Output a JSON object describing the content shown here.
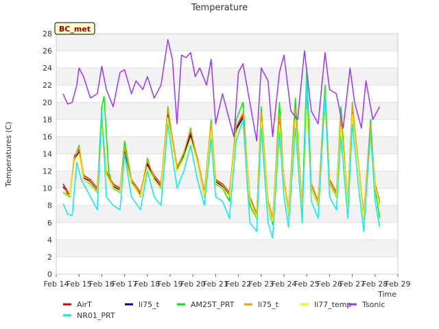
{
  "chart_data": {
    "type": "line",
    "title": "Temperature",
    "xlabel": "Time",
    "ylabel": "Temperatures (C)",
    "station_badge": "BC_met",
    "ylim": [
      0,
      28
    ],
    "xlim": [
      14,
      29
    ],
    "yticks": [
      "0",
      "2",
      "4",
      "6",
      "8",
      "10",
      "12",
      "14",
      "16",
      "18",
      "20",
      "22",
      "24",
      "26",
      "28"
    ],
    "xticks": [
      "Feb 14",
      "Feb 15",
      "Feb 16",
      "Feb 17",
      "Feb 18",
      "Feb 19",
      "Feb 20",
      "Feb 21",
      "Feb 22",
      "Feb 23",
      "Feb 24",
      "Feb 25",
      "Feb 26",
      "Feb 27",
      "Feb 28",
      "Feb 29"
    ],
    "grid": true,
    "legend_position": "bottom",
    "series": [
      {
        "name": "AirT",
        "color": "#dd0000",
        "x": [
          14.3,
          14.6,
          14.8,
          15.0,
          15.2,
          15.5,
          15.8,
          16.0,
          16.2,
          16.5,
          16.8,
          17.0,
          17.3,
          17.7,
          18.0,
          18.3,
          18.6,
          18.9,
          19.3,
          19.6,
          19.9,
          20.2,
          20.5,
          20.8,
          21.0,
          21.3,
          21.6,
          21.9,
          22.2,
          22.5,
          22.8,
          23.0,
          23.3,
          23.5,
          23.8,
          24.0,
          24.2,
          24.5,
          24.8,
          25.0,
          25.2,
          25.5,
          25.8,
          26.0,
          26.3,
          26.5,
          26.8,
          27.0,
          27.3,
          27.5,
          27.8,
          28.0,
          28.2
        ],
        "y": [
          10.5,
          9.2,
          13.8,
          14.5,
          11.5,
          11.0,
          10.0,
          17.8,
          12.0,
          10.5,
          10.0,
          14.5,
          11.0,
          9.5,
          13.0,
          11.5,
          10.5,
          19.0,
          12.5,
          14.0,
          16.5,
          13.5,
          9.5,
          17.5,
          11.0,
          10.5,
          9.5,
          17.0,
          18.5,
          9.0,
          7.0,
          18.5,
          8.5,
          6.5,
          18.0,
          11.0,
          7.5,
          19.0,
          8.0,
          20.0,
          10.5,
          8.5,
          21.0,
          11.0,
          9.5,
          18.0,
          8.5,
          19.5,
          12.0,
          7.0,
          17.0,
          10.5,
          8.5
        ]
      },
      {
        "name": "li75_t",
        "color": "#0000aa",
        "x": [
          14.3,
          14.6,
          14.8,
          15.0,
          15.2,
          15.5,
          15.8,
          16.0,
          16.2,
          16.5,
          16.8,
          17.0,
          17.3,
          17.7,
          18.0,
          18.3,
          18.6,
          18.9,
          19.3,
          19.6,
          19.9,
          20.2,
          20.5,
          20.8,
          21.0,
          21.3,
          21.6,
          21.9,
          22.2,
          22.5,
          22.8,
          23.0,
          23.3,
          23.5,
          23.8,
          24.0,
          24.2,
          24.5,
          24.8,
          25.0,
          25.2,
          25.5,
          25.8,
          26.0,
          26.3,
          26.5,
          26.8,
          27.0,
          27.3,
          27.5,
          27.8,
          28.0,
          28.2
        ],
        "y": [
          10.2,
          9.0,
          13.5,
          14.2,
          11.2,
          10.8,
          9.8,
          17.5,
          11.8,
          10.2,
          9.8,
          14.2,
          10.8,
          9.3,
          12.8,
          11.2,
          10.2,
          18.8,
          12.2,
          13.8,
          16.2,
          13.2,
          9.3,
          17.2,
          10.8,
          10.2,
          9.2,
          16.8,
          18.2,
          8.8,
          6.8,
          18.2,
          8.2,
          6.2,
          17.8,
          10.8,
          7.2,
          18.8,
          7.8,
          19.8,
          10.2,
          8.2,
          20.8,
          10.8,
          9.2,
          17.8,
          8.2,
          19.2,
          11.8,
          6.8,
          16.8,
          10.2,
          8.2
        ]
      },
      {
        "name": "AM25T_PRT",
        "color": "#00ee00",
        "x": [
          14.3,
          14.6,
          14.8,
          15.0,
          15.2,
          15.5,
          15.8,
          16.0,
          16.1,
          16.3,
          16.5,
          16.8,
          17.0,
          17.3,
          17.7,
          18.0,
          18.3,
          18.6,
          18.9,
          19.3,
          19.6,
          19.9,
          20.2,
          20.5,
          20.8,
          21.0,
          21.3,
          21.6,
          21.9,
          22.2,
          22.5,
          22.8,
          23.0,
          23.3,
          23.5,
          23.8,
          24.0,
          24.2,
          24.5,
          24.8,
          25.0,
          25.2,
          25.5,
          25.8,
          26.0,
          26.3,
          26.5,
          26.8,
          27.0,
          27.3,
          27.5,
          27.8,
          28.0,
          28.2
        ],
        "y": [
          9.5,
          9.0,
          13.5,
          15.0,
          11.0,
          10.5,
          9.5,
          19.5,
          20.7,
          12.0,
          10.0,
          9.5,
          15.5,
          11.0,
          9.0,
          13.5,
          11.0,
          10.0,
          19.5,
          12.0,
          14.0,
          17.0,
          13.0,
          9.0,
          18.0,
          10.5,
          10.0,
          8.5,
          18.0,
          20.0,
          8.0,
          6.5,
          19.5,
          8.0,
          5.8,
          20.0,
          10.5,
          7.0,
          20.5,
          7.5,
          24.0,
          10.0,
          8.0,
          22.0,
          10.5,
          9.0,
          19.5,
          8.0,
          20.0,
          11.5,
          6.5,
          18.0,
          10.0,
          6.5
        ]
      },
      {
        "name": "li75_t",
        "color": "#ff9900",
        "x": [
          14.3,
          14.6,
          14.8,
          15.0,
          15.2,
          15.5,
          15.8,
          16.0,
          16.2,
          16.5,
          16.8,
          17.0,
          17.3,
          17.7,
          18.0,
          18.3,
          18.6,
          18.9,
          19.3,
          19.6,
          19.9,
          20.2,
          20.5,
          20.8,
          21.0,
          21.3,
          21.6,
          21.9,
          22.2,
          22.5,
          22.8,
          23.0,
          23.3,
          23.5,
          23.8,
          24.0,
          24.2,
          24.5,
          24.8,
          25.0,
          25.2,
          25.5,
          25.8,
          26.0,
          26.3,
          26.5,
          26.8,
          27.0,
          27.3,
          27.5,
          27.8,
          28.0,
          28.2
        ],
        "y": [
          10.0,
          9.3,
          13.6,
          14.8,
          11.4,
          10.9,
          9.9,
          18.0,
          11.9,
          10.4,
          9.9,
          14.8,
          10.9,
          9.4,
          13.2,
          11.4,
          10.4,
          19.2,
          12.4,
          14.2,
          16.8,
          13.4,
          9.4,
          17.6,
          10.9,
          10.4,
          9.4,
          17.2,
          18.8,
          8.9,
          6.9,
          18.8,
          8.4,
          6.4,
          18.6,
          10.9,
          7.4,
          19.2,
          7.9,
          20.5,
          10.4,
          8.4,
          21.2,
          10.9,
          9.4,
          18.4,
          8.4,
          19.8,
          11.9,
          6.9,
          17.4,
          10.4,
          8.4
        ]
      },
      {
        "name": "li77_temp",
        "color": "#ffee00",
        "x": [
          14.3,
          14.6,
          14.8,
          15.0,
          15.2,
          15.5,
          15.8,
          16.0,
          16.2,
          16.5,
          16.8,
          17.0,
          17.3,
          17.7,
          18.0,
          18.3,
          18.6,
          18.9,
          19.3,
          19.6,
          19.9,
          20.2,
          20.5,
          20.8,
          21.0,
          21.3,
          21.6,
          21.9,
          22.2,
          22.5,
          22.8,
          23.0,
          23.3,
          23.5,
          23.8,
          24.0,
          24.2,
          24.5,
          24.8,
          25.0,
          25.2,
          25.5,
          25.8,
          26.0,
          26.3,
          26.5,
          26.8,
          27.0,
          27.3,
          27.5,
          27.8,
          28.0,
          28.2
        ],
        "y": [
          9.6,
          9.1,
          13.2,
          14.0,
          11.0,
          10.6,
          9.6,
          17.0,
          11.6,
          10.1,
          9.6,
          13.8,
          10.6,
          9.1,
          12.5,
          11.0,
          10.1,
          18.2,
          12.0,
          13.5,
          15.8,
          13.0,
          9.1,
          16.8,
          10.6,
          10.1,
          9.1,
          16.4,
          17.8,
          8.6,
          6.6,
          17.8,
          8.1,
          6.1,
          17.4,
          10.6,
          7.1,
          18.0,
          7.6,
          19.2,
          10.1,
          8.1,
          20.0,
          10.6,
          9.1,
          17.2,
          8.1,
          18.6,
          11.6,
          6.6,
          16.2,
          10.1,
          8.1
        ]
      },
      {
        "name": "NR01_PRT",
        "color": "#00eeee",
        "x": [
          14.3,
          14.5,
          14.7,
          14.9,
          15.1,
          15.3,
          15.5,
          15.8,
          16.0,
          16.2,
          16.5,
          16.8,
          17.0,
          17.3,
          17.7,
          18.0,
          18.3,
          18.6,
          18.9,
          19.3,
          19.6,
          19.9,
          20.2,
          20.5,
          20.8,
          21.0,
          21.3,
          21.6,
          21.9,
          22.2,
          22.5,
          22.8,
          23.0,
          23.3,
          23.5,
          23.8,
          24.0,
          24.2,
          24.5,
          24.8,
          25.0,
          25.2,
          25.5,
          25.8,
          26.0,
          26.3,
          26.5,
          26.8,
          27.0,
          27.3,
          27.5,
          27.8,
          28.0,
          28.2
        ],
        "y": [
          8.2,
          7.0,
          6.8,
          13.0,
          11.0,
          10.0,
          9.0,
          7.5,
          19.0,
          9.0,
          8.0,
          7.5,
          14.0,
          9.0,
          7.5,
          12.0,
          9.0,
          8.0,
          17.5,
          10.0,
          12.0,
          15.0,
          11.0,
          8.0,
          15.8,
          9.0,
          8.5,
          6.5,
          15.5,
          18.0,
          6.0,
          5.0,
          17.0,
          6.0,
          4.2,
          16.5,
          9.0,
          5.5,
          17.0,
          6.0,
          23.0,
          8.5,
          6.5,
          21.0,
          9.0,
          7.5,
          16.0,
          6.5,
          17.5,
          9.5,
          5.0,
          16.5,
          8.5,
          5.5
        ]
      },
      {
        "name": "Tsonic",
        "color": "#9933ff",
        "x": [
          14.3,
          14.5,
          14.7,
          14.9,
          15.0,
          15.2,
          15.5,
          15.8,
          16.0,
          16.2,
          16.5,
          16.8,
          17.0,
          17.3,
          17.5,
          17.8,
          18.0,
          18.3,
          18.6,
          18.9,
          19.1,
          19.3,
          19.5,
          19.7,
          19.9,
          20.1,
          20.3,
          20.6,
          20.8,
          21.0,
          21.3,
          21.6,
          21.8,
          22.0,
          22.2,
          22.5,
          22.8,
          23.0,
          23.3,
          23.5,
          23.8,
          24.0,
          24.3,
          24.6,
          24.9,
          25.2,
          25.5,
          25.8,
          26.0,
          26.3,
          26.6,
          26.9,
          27.1,
          27.4,
          27.6,
          27.9,
          28.1,
          28.2
        ],
        "y": [
          21.0,
          19.8,
          20.0,
          22.0,
          24.0,
          23.0,
          20.5,
          21.0,
          24.2,
          21.5,
          19.5,
          23.5,
          23.8,
          21.0,
          22.5,
          21.5,
          23.0,
          20.5,
          22.0,
          27.3,
          25.0,
          17.5,
          25.5,
          25.2,
          25.8,
          23.0,
          24.0,
          22.0,
          25.0,
          17.5,
          21.0,
          18.0,
          16.0,
          23.5,
          24.5,
          20.0,
          15.5,
          24.0,
          22.5,
          16.0,
          23.5,
          25.5,
          19.0,
          18.0,
          26.0,
          19.0,
          17.5,
          25.8,
          21.5,
          21.0,
          17.0,
          24.0,
          20.0,
          17.0,
          22.5,
          18.0,
          19.0,
          19.5
        ]
      }
    ]
  },
  "legend": {
    "row1": [
      "AirT",
      "li75_t",
      "AM25T_PRT",
      "li75_t",
      "li77_temp",
      "Tsonic"
    ],
    "row2": [
      "NR01_PRT"
    ]
  }
}
